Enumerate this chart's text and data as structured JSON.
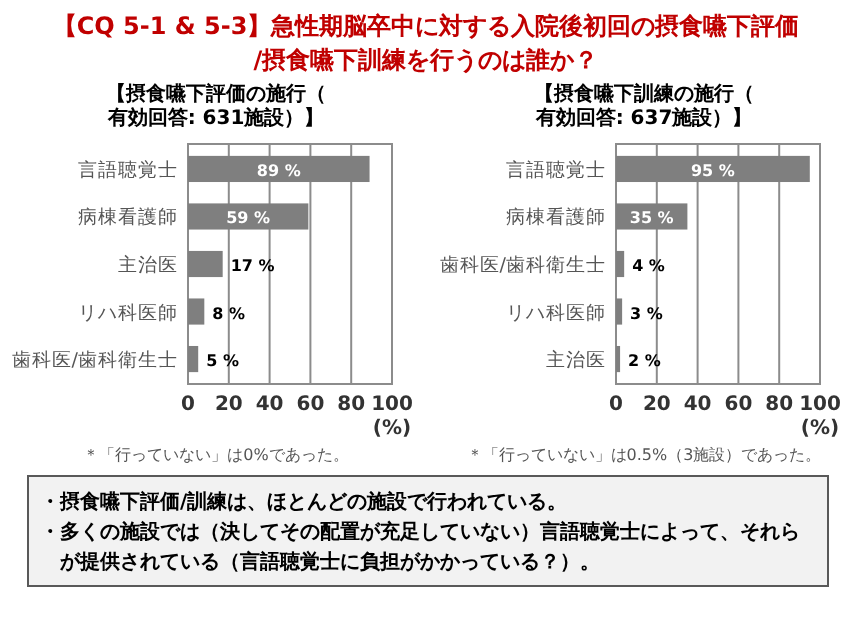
{
  "chart_data": [
    {
      "type": "other",
      "title": "【CQ 5-1 & 5-3】急性期脳卒中に対する入院後初回の摂食嚥下評価/摂食嚥下訓練を行うのは誰か？"
    },
    {
      "type": "bar",
      "orientation": "horizontal",
      "title": "【摂食嚥下評価の施行（有効回答: 631施設）】",
      "categories": [
        "言語聴覚士",
        "病棟看護師",
        "主治医",
        "リハ科医師",
        "歯科医/歯科衛生士"
      ],
      "values": [
        89,
        59,
        17,
        8,
        5
      ],
      "value_labels": [
        "89 %",
        "59 %",
        "17 %",
        "8 %",
        "5 %"
      ],
      "color": "#7f7f7f",
      "xlim": [
        0,
        100
      ],
      "xticks": [
        0,
        20,
        40,
        60,
        80,
        100
      ],
      "xlabel": "(%)",
      "grid": "x",
      "annotations": [
        "＊「行っていない」は0%であった。"
      ]
    },
    {
      "type": "bar",
      "orientation": "horizontal",
      "title": "【摂食嚥下訓練の施行（有効回答: 637施設）】",
      "categories": [
        "言語聴覚士",
        "病棟看護師",
        "歯科医/歯科衛生士",
        "リハ科医師",
        "主治医"
      ],
      "values": [
        95,
        35,
        4,
        3,
        2
      ],
      "value_labels": [
        "95 %",
        "35 %",
        "4 %",
        "3 %",
        "2 %"
      ],
      "color": "#7f7f7f",
      "xlim": [
        0,
        100
      ],
      "xticks": [
        0,
        20,
        40,
        60,
        80,
        100
      ],
      "xlabel": "(%)",
      "grid": "x",
      "annotations": [
        "＊「行っていない」は0.5%（3施設）であった。"
      ]
    },
    {
      "type": "other",
      "annotations": [
        "・摂食嚥下評価/訓練は、ほとんどの施設で行われている。",
        "・多くの施設では（決してその配置が充足していない）言語聴覚士によって、それらが提供されている（言語聴覚士に負担がかかっている？）。"
      ]
    }
  ]
}
